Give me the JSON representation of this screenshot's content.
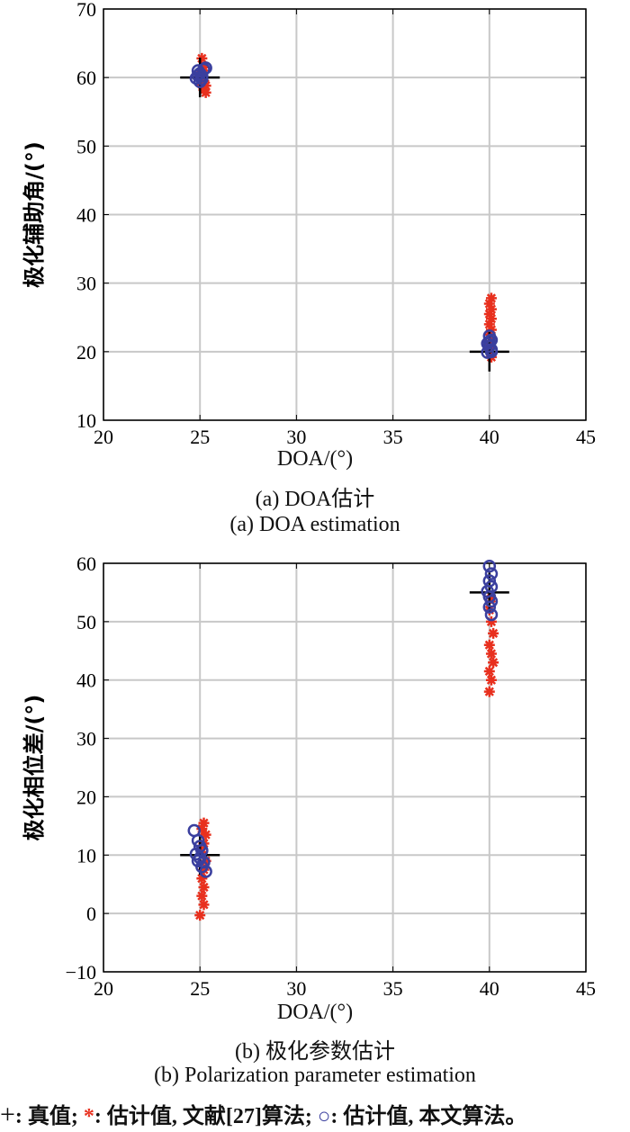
{
  "chart_data": [
    {
      "type": "scatter",
      "xlabel": "DOA/(°)",
      "ylabel": "极化辅助角/(°)",
      "caption_cn": "(a) DOA估计",
      "caption_en": "(a) DOA estimation",
      "xlim": [
        20,
        45
      ],
      "ylim": [
        10,
        70
      ],
      "xticks": [
        20,
        25,
        30,
        35,
        40,
        45
      ],
      "yticks": [
        10,
        20,
        30,
        40,
        50,
        60,
        70
      ],
      "grid": true,
      "series": [
        {
          "name": "真值",
          "marker": "plus",
          "color": "#000000",
          "points": [
            [
              25,
              60
            ],
            [
              40,
              20
            ]
          ]
        },
        {
          "name": "估计值, 文献[27]算法",
          "marker": "star",
          "color": "#e8301e",
          "points": [
            [
              25.1,
              62.8
            ],
            [
              25.2,
              61.5
            ],
            [
              25.1,
              60.8
            ],
            [
              25.2,
              59.5
            ],
            [
              25.3,
              58.8
            ],
            [
              25.2,
              58.2
            ],
            [
              25.3,
              57.8
            ],
            [
              25.1,
              59.0
            ],
            [
              40.1,
              27.8
            ],
            [
              40.0,
              27.0
            ],
            [
              40.1,
              26.2
            ],
            [
              40.0,
              25.5
            ],
            [
              40.1,
              24.8
            ],
            [
              40.0,
              24.0
            ],
            [
              40.1,
              23.2
            ],
            [
              40.0,
              22.5
            ],
            [
              40.1,
              21.5
            ],
            [
              40.0,
              20.5
            ],
            [
              40.1,
              19.2
            ]
          ]
        },
        {
          "name": "估计值, 本文算法",
          "marker": "circle",
          "color": "#3a3f9e",
          "points": [
            [
              24.9,
              61.0
            ],
            [
              25.0,
              60.6
            ],
            [
              25.1,
              60.2
            ],
            [
              24.8,
              59.9
            ],
            [
              25.2,
              61.2
            ],
            [
              25.0,
              59.4
            ],
            [
              25.1,
              59.8
            ],
            [
              25.3,
              61.4
            ],
            [
              24.9,
              60.3
            ],
            [
              40.0,
              22.3
            ],
            [
              40.1,
              21.7
            ],
            [
              39.9,
              21.2
            ],
            [
              40.0,
              20.8
            ],
            [
              40.1,
              20.3
            ],
            [
              39.9,
              19.9
            ],
            [
              40.0,
              21.5
            ],
            [
              40.1,
              20.0
            ]
          ]
        }
      ]
    },
    {
      "type": "scatter",
      "xlabel": "DOA/(°)",
      "ylabel": "极化相位差/(°)",
      "caption_cn": "(b) 极化参数估计",
      "caption_en": "(b) Polarization parameter estimation",
      "xlim": [
        20,
        45
      ],
      "ylim": [
        -10,
        60
      ],
      "xticks": [
        20,
        25,
        30,
        35,
        40,
        45
      ],
      "yticks": [
        -10,
        0,
        10,
        20,
        30,
        40,
        50,
        60
      ],
      "grid": true,
      "series": [
        {
          "name": "真值",
          "marker": "plus",
          "color": "#000000",
          "points": [
            [
              25,
              10
            ],
            [
              40,
              55
            ]
          ]
        },
        {
          "name": "估计值, 文献[27]算法",
          "marker": "star",
          "color": "#e8301e",
          "points": [
            [
              25.2,
              15.5
            ],
            [
              25.1,
              14.5
            ],
            [
              25.3,
              13.5
            ],
            [
              25.2,
              12.0
            ],
            [
              25.1,
              10.5
            ],
            [
              25.3,
              9.0
            ],
            [
              25.2,
              7.5
            ],
            [
              25.1,
              6.0
            ],
            [
              25.2,
              4.5
            ],
            [
              25.1,
              3.0
            ],
            [
              25.2,
              1.5
            ],
            [
              25.0,
              -0.3
            ],
            [
              40.1,
              54.0
            ],
            [
              40.0,
              52.0
            ],
            [
              40.1,
              50.0
            ],
            [
              40.2,
              48.0
            ],
            [
              40.0,
              46.0
            ],
            [
              40.1,
              44.5
            ],
            [
              40.2,
              43.0
            ],
            [
              40.0,
              41.5
            ],
            [
              40.1,
              40.0
            ],
            [
              40.0,
              38.0
            ]
          ]
        },
        {
          "name": "估计值, 本文算法",
          "marker": "circle",
          "color": "#3a3f9e",
          "points": [
            [
              24.7,
              14.2
            ],
            [
              24.9,
              12.5
            ],
            [
              25.0,
              11.5
            ],
            [
              25.1,
              10.8
            ],
            [
              24.8,
              10.2
            ],
            [
              25.0,
              9.5
            ],
            [
              25.2,
              8.8
            ],
            [
              25.1,
              8.0
            ],
            [
              25.3,
              7.2
            ],
            [
              24.9,
              9.0
            ],
            [
              40.0,
              59.5
            ],
            [
              40.1,
              58.2
            ],
            [
              40.0,
              57.0
            ],
            [
              40.1,
              56.0
            ],
            [
              39.9,
              55.2
            ],
            [
              40.0,
              54.3
            ],
            [
              40.1,
              53.5
            ],
            [
              40.0,
              52.5
            ],
            [
              40.1,
              51.2
            ]
          ]
        }
      ]
    }
  ],
  "legend": {
    "true_label": "真值;",
    "ref_label": "估计值, 文献[27]算法;",
    "ours_label": "估计值, 本文算法。",
    "sep": ":"
  }
}
